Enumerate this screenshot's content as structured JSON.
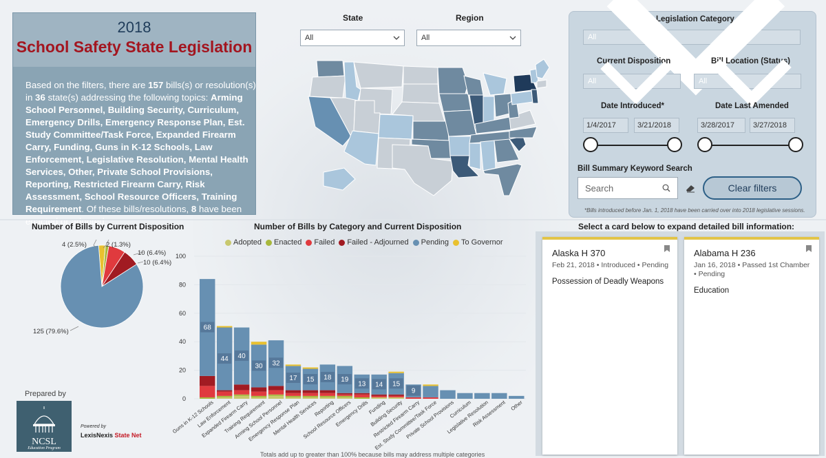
{
  "header": {
    "year": "2018",
    "title": "School Safety State Legislation",
    "summary_prefix": "Based on the filters, there are ",
    "bill_count": "157",
    "summary_mid1": " bills(s) or resolution(s) in ",
    "state_count": "36",
    "summary_mid2": " state(s) addressing the following topics: ",
    "topics": "Arming School Personnel, Building Security, Curriculum, Emergency Drills, Emergency Response Plan, Est. Study Committee/Task Force, Expanded Firearm Carry, Funding, Guns in K-12 Schools, Law Enforcement, Legislative Resolution, Mental Health Services, Other, Private School Provisions, Reporting, Restricted Firearm Carry, Risk Assessment, School Resource Officers, Training Requirement",
    "summary_mid3": ". Of these bills/resolutions, ",
    "enacted_count": "8",
    "summary_suffix": " have been enacted or adopted."
  },
  "filters": {
    "state_label": "State",
    "state_value": "All",
    "region_label": "Region",
    "region_value": "All",
    "category_label": "Legislation Category",
    "category_value": "All",
    "disposition_label": "Current Disposition",
    "disposition_value": "All",
    "location_label": "Bill Location (Status)",
    "location_value": "All",
    "date_introduced_label": "Date Introduced*",
    "date_introduced_from": "1/4/2017",
    "date_introduced_to": "3/21/2018",
    "date_amended_label": "Date Last Amended",
    "date_amended_from": "3/28/2017",
    "date_amended_to": "3/27/2018",
    "keyword_label": "Bill Summary Keyword Search",
    "search_placeholder": "Search",
    "clear_button": "Clear filters",
    "footnote": "*Bills introduced before Jan. 1, 2018 have been carried over into 2018 legislative sessions."
  },
  "pie": {
    "title": "Number of Bills by Current Disposition",
    "labels": [
      "4 (2.5%)",
      "2 (1.3%)",
      "10 (6.4%)",
      "10 (6.4%)",
      "125 (79.6%)"
    ]
  },
  "bar_section": {
    "title": "Number of Bills by Category and Current Disposition",
    "footnote": "Totals add up to greater than 100% because bills may address multiple categories"
  },
  "cards_section": {
    "title": "Select a card below to expand detailed bill information:",
    "cards": [
      {
        "title": "Alaska H 370",
        "meta": "Feb 21, 2018 • Introduced • Pending",
        "topic": "Possession of Deadly Weapons"
      },
      {
        "title": "Alabama H 236",
        "meta": "Jan 16, 2018 • Passed 1st Chamber • Pending",
        "topic": "Education"
      }
    ]
  },
  "branding": {
    "prepared_by": "Prepared by",
    "logo_text": "NCSL",
    "logo_sub": "Education Program",
    "powered_by": "Powered by",
    "vendor": "LexisNexis",
    "vendor_product": "State Net"
  },
  "colors": {
    "adopted": "#c8c86e",
    "enacted": "#a8b83c",
    "failed": "#e03a3e",
    "failed_adjourned": "#a11b22",
    "pending": "#6790b2",
    "to_governor": "#e9c130"
  },
  "chart_data": [
    {
      "type": "pie",
      "title": "Number of Bills by Current Disposition",
      "categories": [
        "To Governor",
        "Enacted",
        "Failed",
        "Failed - Adjourned",
        "Pending"
      ],
      "values": [
        4,
        2,
        10,
        10,
        125
      ],
      "labels": [
        "4 (2.5%)",
        "2 (1.3%)",
        "10 (6.4%)",
        "10 (6.4%)",
        "125 (79.6%)"
      ]
    },
    {
      "type": "bar",
      "stacked": true,
      "title": "Number of Bills by Category and Current Disposition",
      "ylim": [
        0,
        100
      ],
      "yticks": [
        "100",
        "80",
        "60",
        "40",
        "20",
        "0"
      ],
      "categories": [
        "Guns in K-12 Schools",
        "Law Enforcement",
        "Expanded Firearm Carry",
        "Training Requirement",
        "Arming School Personnel",
        "Emergency Response Plan",
        "Mental Health Services",
        "Reporting",
        "School Resource Officers",
        "Emergency Drills",
        "Funding",
        "Building Security",
        "Restricted Firearm Carry",
        "Est. Study Committee/Task Force",
        "Private School Provisions",
        "Curriculum",
        "Legislative Resolution",
        "Risk Assessment",
        "Other"
      ],
      "series": [
        {
          "name": "Adopted",
          "values": [
            0,
            1,
            2,
            1,
            2,
            1,
            1,
            1,
            1,
            0,
            1,
            1,
            0,
            0,
            0,
            0,
            0,
            0,
            0
          ]
        },
        {
          "name": "Enacted",
          "values": [
            1,
            1,
            1,
            1,
            1,
            1,
            1,
            1,
            1,
            1,
            0,
            0,
            0,
            0,
            0,
            0,
            0,
            0,
            0
          ]
        },
        {
          "name": "Failed",
          "values": [
            8,
            3,
            3,
            3,
            3,
            2,
            2,
            2,
            1,
            2,
            1,
            1,
            1,
            1,
            0,
            0,
            0,
            0,
            0
          ]
        },
        {
          "name": "Failed - Adjourned",
          "values": [
            7,
            1,
            4,
            3,
            3,
            2,
            2,
            2,
            1,
            1,
            1,
            1,
            0,
            0,
            0,
            0,
            0,
            0,
            0
          ]
        },
        {
          "name": "Pending",
          "values": [
            68,
            44,
            40,
            30,
            32,
            17,
            15,
            18,
            19,
            13,
            14,
            15,
            9,
            8,
            6,
            4,
            4,
            4,
            2
          ]
        },
        {
          "name": "To Governor",
          "values": [
            0,
            1,
            0,
            2,
            0,
            1,
            1,
            0,
            0,
            0,
            0,
            1,
            0,
            1,
            0,
            0,
            0,
            0,
            0
          ]
        }
      ],
      "labels": [
        68,
        44,
        40,
        30,
        32,
        17,
        15,
        18,
        19,
        13,
        14,
        15,
        9,
        null,
        null,
        null,
        null,
        null,
        null
      ],
      "legend": [
        "Adopted",
        "Enacted",
        "Failed",
        "Failed - Adjourned",
        "Pending",
        "To Governor"
      ]
    }
  ]
}
